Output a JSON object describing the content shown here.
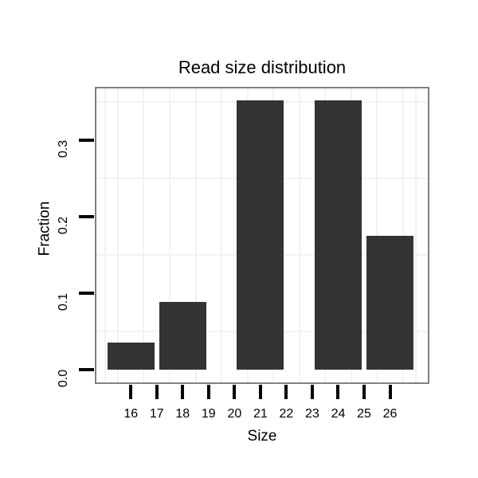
{
  "chart_data": {
    "type": "bar",
    "title": "Read size distribution",
    "xlabel": "Size",
    "ylabel": "Fraction",
    "x": [
      16,
      18,
      21,
      24,
      26
    ],
    "values": [
      0.035,
      0.088,
      0.352,
      0.352,
      0.175
    ],
    "bar_width": 1.82,
    "x_tick_values": [
      16,
      17,
      18,
      19,
      20,
      21,
      22,
      23,
      24,
      25,
      26
    ],
    "x_tick_labels": [
      "16",
      "17",
      "18",
      "19",
      "20",
      "21",
      "22",
      "23",
      "24",
      "25",
      "26"
    ],
    "y_tick_values": [
      0,
      0.1,
      0.2,
      0.3
    ],
    "y_tick_labels": [
      "0.0",
      "0.1",
      "0.2",
      "0.3"
    ],
    "xlim": [
      14.61,
      27.52
    ],
    "ylim": [
      -0.0188,
      0.3698
    ],
    "grid": "on",
    "grid_x_lines": [
      15,
      15.5,
      16.5,
      17.5,
      18.5,
      19.5,
      20.5,
      21.5,
      22.5,
      23.5,
      24.5,
      25.5,
      26.5,
      27
    ],
    "grid_y_lines": [
      0.05,
      0.15,
      0.25,
      0.35
    ],
    "legend_position": "none",
    "colors": {
      "bar": "#333333",
      "grid": "#f2f2f2",
      "panel_border": "#818181",
      "tick": "#000000",
      "text": "#000000",
      "background": "#ffffff"
    }
  }
}
